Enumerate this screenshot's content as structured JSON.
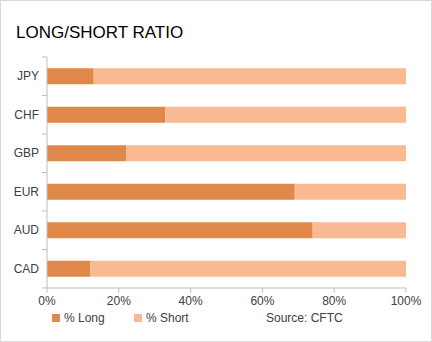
{
  "chart_data": {
    "type": "bar",
    "title": "LONG/SHORT RATIO",
    "orientation": "horizontal",
    "stacked": true,
    "categories": [
      "JPY",
      "CHF",
      "GBP",
      "EUR",
      "AUD",
      "CAD"
    ],
    "series": [
      {
        "name": "% Long",
        "color": "#e0884a",
        "values": [
          13,
          33,
          22,
          69,
          74,
          12
        ]
      },
      {
        "name": "% Short",
        "color": "#f8b993",
        "values": [
          87,
          67,
          78,
          31,
          26,
          88
        ]
      }
    ],
    "xlim": [
      0,
      100
    ],
    "xticks": [
      {
        "value": 0,
        "label": "0%"
      },
      {
        "value": 20,
        "label": "20%"
      },
      {
        "value": 40,
        "label": "40%"
      },
      {
        "value": 60,
        "label": "60%"
      },
      {
        "value": 80,
        "label": "80%"
      },
      {
        "value": 100,
        "label": "100%"
      }
    ],
    "grid": false,
    "legend": "bottom",
    "annotations": [
      "Source: CFTC"
    ]
  }
}
